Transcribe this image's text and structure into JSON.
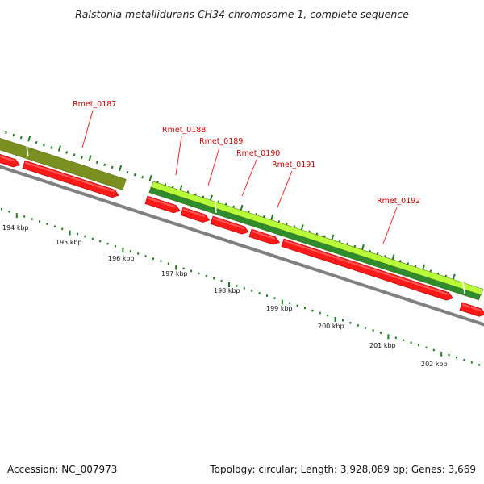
{
  "title": "Ralstonia metallidurans CH34 chromosome 1, complete sequence",
  "accession": "Accession: NC_007973",
  "summary": "Topology: circular; Length: 3,928,089 bp; Genes: 3,669",
  "colors": {
    "backbone": "#808080",
    "cds": "#ff1a1a",
    "olive_band": "#7a8f1f",
    "light_green_band": "#b8ff3a",
    "dark_green_band": "#2e8b2e",
    "tick": "#1a7f1a",
    "gene_label": "#cc0000",
    "label_line": "#ff2222"
  },
  "genes": [
    {
      "name": "Rmet_0187"
    },
    {
      "name": "Rmet_0188"
    },
    {
      "name": "Rmet_0189"
    },
    {
      "name": "Rmet_0190"
    },
    {
      "name": "Rmet_0191"
    },
    {
      "name": "Rmet_0192"
    }
  ],
  "kbp_labels": [
    "194 kbp",
    "195 kbp",
    "196 kbp",
    "197 kbp",
    "198 kbp",
    "199 kbp",
    "200 kbp",
    "201 kbp",
    "202 kbp"
  ]
}
